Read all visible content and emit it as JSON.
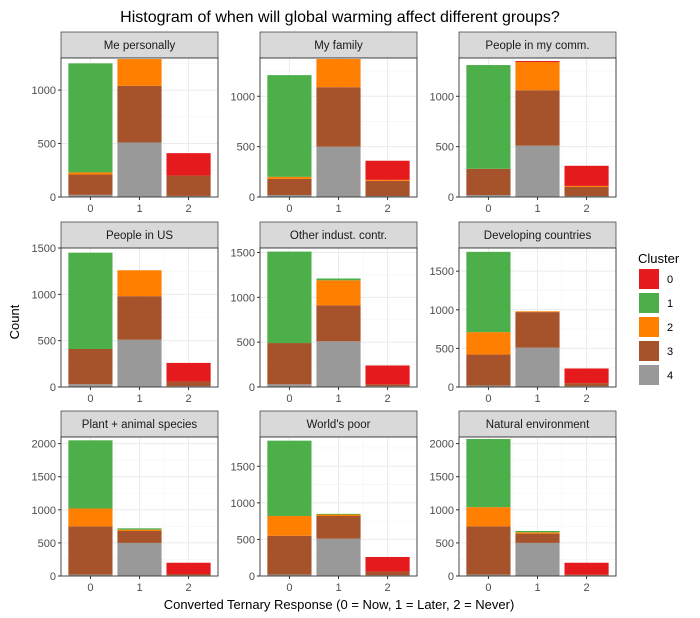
{
  "chart_data": {
    "type": "bar",
    "stacked": true,
    "title": "Histogram of when will global warming affect different groups?",
    "xlabel": "Converted Ternary Response (0 = Now, 1 = Later, 2 = Never)",
    "ylabel": "Count",
    "grid": true,
    "legend": {
      "title": "Cluster",
      "placement": "right",
      "entries": [
        {
          "label": "0",
          "color": "#e41a1c"
        },
        {
          "label": "1",
          "color": "#4daf4a"
        },
        {
          "label": "2",
          "color": "#ff7f00"
        },
        {
          "label": "3",
          "color": "#a6522a"
        },
        {
          "label": "4",
          "color": "#999999"
        }
      ]
    },
    "categories": [
      "0",
      "1",
      "2"
    ],
    "stack_order_bottom_to_top": [
      "4",
      "3",
      "2",
      "1",
      "0"
    ],
    "facets": [
      {
        "title": "Me personally",
        "ylim": [
          0,
          1300
        ],
        "yticks": [
          0,
          500,
          1000
        ],
        "series": [
          {
            "name": "4",
            "values": [
              20,
              510,
              10
            ]
          },
          {
            "name": "3",
            "values": [
              190,
              530,
              190
            ]
          },
          {
            "name": "2",
            "values": [
              20,
              250,
              0
            ]
          },
          {
            "name": "1",
            "values": [
              1020,
              0,
              0
            ]
          },
          {
            "name": "0",
            "values": [
              0,
              0,
              210
            ]
          }
        ]
      },
      {
        "title": "My family",
        "ylim": [
          0,
          1380
        ],
        "yticks": [
          0,
          500,
          1000
        ],
        "series": [
          {
            "name": "4",
            "values": [
              20,
              500,
              10
            ]
          },
          {
            "name": "3",
            "values": [
              160,
              590,
              150
            ]
          },
          {
            "name": "2",
            "values": [
              20,
              280,
              10
            ]
          },
          {
            "name": "1",
            "values": [
              1010,
              0,
              0
            ]
          },
          {
            "name": "0",
            "values": [
              0,
              0,
              190
            ]
          }
        ]
      },
      {
        "title": "People in my comm.",
        "ylim": [
          0,
          1380
        ],
        "yticks": [
          0,
          500,
          1000
        ],
        "series": [
          {
            "name": "4",
            "values": [
              20,
              510,
              10
            ]
          },
          {
            "name": "3",
            "values": [
              260,
              550,
              90
            ]
          },
          {
            "name": "2",
            "values": [
              0,
              280,
              10
            ]
          },
          {
            "name": "1",
            "values": [
              1030,
              0,
              0
            ]
          },
          {
            "name": "0",
            "values": [
              0,
              10,
              200
            ]
          }
        ]
      },
      {
        "title": "People in US",
        "ylim": [
          0,
          1500
        ],
        "yticks": [
          0,
          500,
          1000,
          1500
        ],
        "series": [
          {
            "name": "4",
            "values": [
              30,
              510,
              10
            ]
          },
          {
            "name": "3",
            "values": [
              380,
              470,
              50
            ]
          },
          {
            "name": "2",
            "values": [
              0,
              280,
              0
            ]
          },
          {
            "name": "1",
            "values": [
              1040,
              0,
              0
            ]
          },
          {
            "name": "0",
            "values": [
              0,
              0,
              200
            ]
          }
        ]
      },
      {
        "title": "Other indust. contr.",
        "ylim": [
          0,
          1550
        ],
        "yticks": [
          0,
          500,
          1000,
          1500
        ],
        "series": [
          {
            "name": "4",
            "values": [
              30,
              510,
              10
            ]
          },
          {
            "name": "3",
            "values": [
              460,
              400,
              20
            ]
          },
          {
            "name": "2",
            "values": [
              0,
              280,
              0
            ]
          },
          {
            "name": "1",
            "values": [
              1020,
              20,
              0
            ]
          },
          {
            "name": "0",
            "values": [
              0,
              0,
              210
            ]
          }
        ]
      },
      {
        "title": "Developing countries",
        "ylim": [
          0,
          1800
        ],
        "yticks": [
          0,
          500,
          1000,
          1500
        ],
        "series": [
          {
            "name": "4",
            "values": [
              20,
              510,
              10
            ]
          },
          {
            "name": "3",
            "values": [
              400,
              460,
              40
            ]
          },
          {
            "name": "2",
            "values": [
              290,
              10,
              0
            ]
          },
          {
            "name": "1",
            "values": [
              1040,
              0,
              0
            ]
          },
          {
            "name": "0",
            "values": [
              0,
              0,
              190
            ]
          }
        ]
      },
      {
        "title": "Plant + animal species",
        "ylim": [
          0,
          2100
        ],
        "yticks": [
          0,
          500,
          1000,
          1500,
          2000
        ],
        "series": [
          {
            "name": "4",
            "values": [
              20,
              500,
              10
            ]
          },
          {
            "name": "3",
            "values": [
              730,
              180,
              20
            ]
          },
          {
            "name": "2",
            "values": [
              270,
              20,
              0
            ]
          },
          {
            "name": "1",
            "values": [
              1030,
              20,
              0
            ]
          },
          {
            "name": "0",
            "values": [
              0,
              0,
              170
            ]
          }
        ]
      },
      {
        "title": "World's poor",
        "ylim": [
          0,
          1900
        ],
        "yticks": [
          0,
          500,
          1000,
          1500
        ],
        "series": [
          {
            "name": "4",
            "values": [
              20,
              510,
              10
            ]
          },
          {
            "name": "3",
            "values": [
              530,
              310,
              50
            ]
          },
          {
            "name": "2",
            "values": [
              270,
              20,
              0
            ]
          },
          {
            "name": "1",
            "values": [
              1030,
              10,
              0
            ]
          },
          {
            "name": "0",
            "values": [
              0,
              0,
              200
            ]
          }
        ]
      },
      {
        "title": "Natural environment",
        "ylim": [
          0,
          2100
        ],
        "yticks": [
          0,
          500,
          1000,
          1500,
          2000
        ],
        "series": [
          {
            "name": "4",
            "values": [
              20,
              500,
              10
            ]
          },
          {
            "name": "3",
            "values": [
              730,
              140,
              10
            ]
          },
          {
            "name": "2",
            "values": [
              290,
              20,
              0
            ]
          },
          {
            "name": "1",
            "values": [
              1030,
              20,
              0
            ]
          },
          {
            "name": "0",
            "values": [
              0,
              0,
              180
            ]
          }
        ]
      }
    ]
  }
}
